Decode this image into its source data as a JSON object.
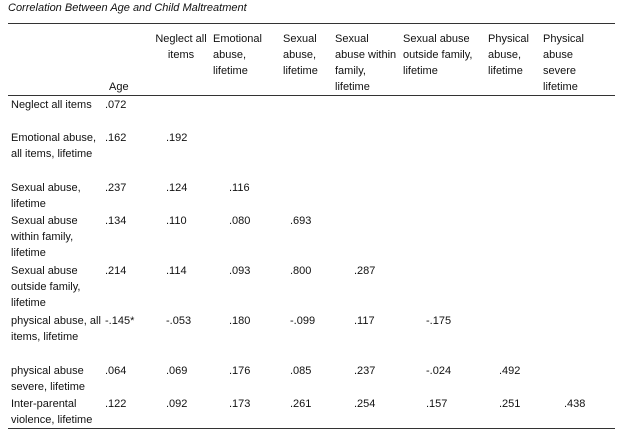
{
  "title": "Correlation Between Age and Child Maltreatment",
  "columns": [
    "Age",
    "Neglect all items",
    "Emotional abuse, lifetime",
    "Sexual abuse, lifetime",
    "Sexual abuse within family, lifetime",
    "Sexual abuse outside family, lifetime",
    "Physical abuse, lifetime",
    "Physical abuse severe lifetime"
  ],
  "rows": [
    {
      "label": "Neglect all items",
      "values": [
        ".072",
        "",
        "",
        "",
        "",
        "",
        "",
        ""
      ]
    },
    {
      "label": "Emotional abuse, all items, lifetime",
      "values": [
        ".162",
        ".192",
        "",
        "",
        "",
        "",
        "",
        ""
      ]
    },
    {
      "label": "Sexual abuse, lifetime",
      "values": [
        ".237",
        ".124",
        ".116",
        "",
        "",
        "",
        "",
        ""
      ]
    },
    {
      "label": "Sexual abuse within family, lifetime",
      "values": [
        ".134",
        ".110",
        ".080",
        ".693",
        "",
        "",
        "",
        ""
      ]
    },
    {
      "label": "Sexual abuse outside family, lifetime",
      "values": [
        ".214",
        ".114",
        ".093",
        ".800",
        ".287",
        "",
        "",
        ""
      ]
    },
    {
      "label": "physical abuse, all items, lifetime",
      "values": [
        "-.145*",
        "-.053",
        ".180",
        "-.099",
        ".117",
        "-.175",
        "",
        ""
      ]
    },
    {
      "label": "physical abuse severe, lifetime",
      "values": [
        ".064",
        ".069",
        ".176",
        ".085",
        ".237",
        "-.024",
        ".492",
        ""
      ]
    },
    {
      "label": "Inter-parental violence, lifetime",
      "values": [
        ".122",
        ".092",
        ".173",
        ".261",
        ".254",
        ".157",
        ".251",
        ".438"
      ]
    }
  ]
}
